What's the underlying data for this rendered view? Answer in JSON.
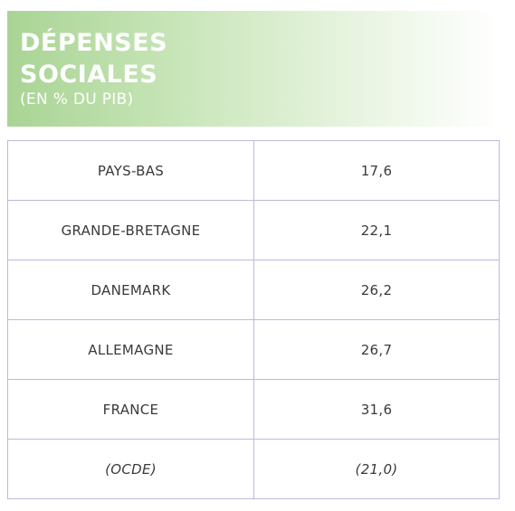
{
  "header": {
    "title_line1": "DÉPENSES",
    "title_line2": "SOCIALES",
    "subtitle": "(EN % DU PIB)"
  },
  "table": {
    "rows": [
      {
        "country": "PAYS-BAS",
        "value": "17,6"
      },
      {
        "country": "GRANDE-BRETAGNE",
        "value": "22,1"
      },
      {
        "country": "DANEMARK",
        "value": "26,2"
      },
      {
        "country": "ALLEMAGNE",
        "value": "26,7"
      },
      {
        "country": "FRANCE",
        "value": "31,6"
      },
      {
        "country": "(OCDE)",
        "value": "(21,0)"
      }
    ]
  },
  "colors": {
    "header_gradient_start": "#a9d494",
    "header_text": "#ffffff",
    "table_border": "#c0b8d8",
    "cell_text": "#3a3a3a"
  }
}
